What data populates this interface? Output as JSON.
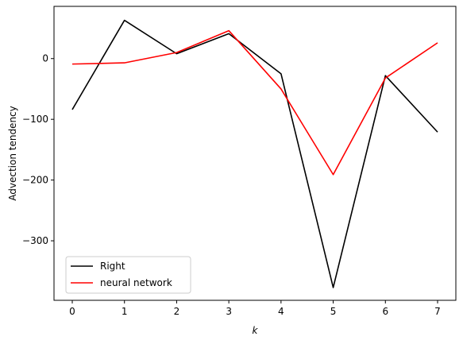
{
  "chart_data": {
    "type": "line",
    "x": [
      0,
      1,
      2,
      3,
      4,
      5,
      6,
      7
    ],
    "series": [
      {
        "name": "Right",
        "color": "#000000",
        "values": [
          -84,
          63,
          8,
          41,
          -25,
          -377,
          -28,
          -121
        ]
      },
      {
        "name": "neural network",
        "color": "#ff0000",
        "values": [
          -9,
          -7,
          10,
          46,
          -50,
          -191,
          -32,
          26
        ]
      }
    ],
    "xlabel": "k",
    "ylabel": "Advection tendency",
    "xlim": [
      -0.35,
      7.35
    ],
    "ylim": [
      -398,
      86
    ],
    "xticks": [
      0,
      1,
      2,
      3,
      4,
      5,
      6,
      7
    ],
    "yticks": [
      -300,
      -200,
      -100,
      0
    ],
    "grid": false,
    "legend_position": "lower-left"
  }
}
